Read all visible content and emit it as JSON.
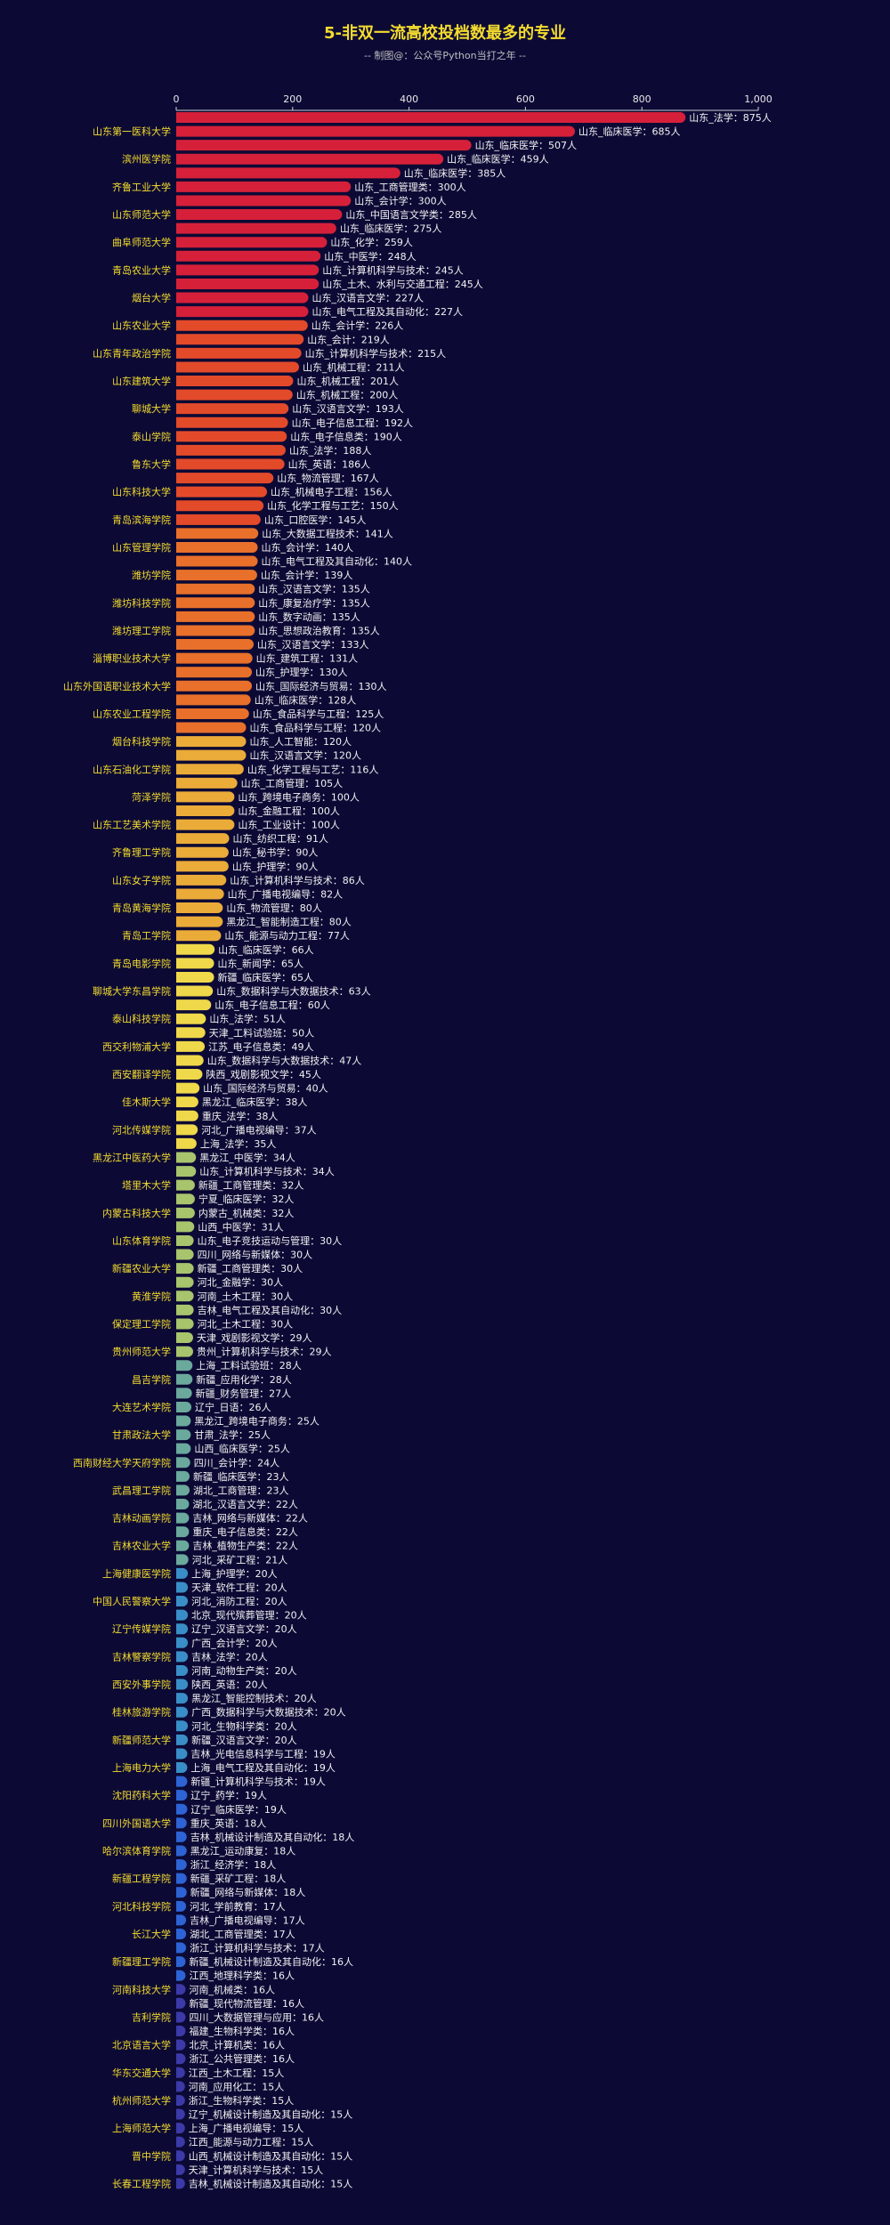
{
  "chart_data": {
    "type": "bar",
    "orientation": "horizontal",
    "title": "5-非双一流高校投档数最多的专业",
    "subtitle": "-- 制图@：公众号Python当打之年 --",
    "xlim": [
      0,
      1000
    ],
    "x_ticks": [
      0,
      200,
      400,
      600,
      800,
      1000
    ],
    "x_tick_labels": [
      "0",
      "200",
      "400",
      "600",
      "800",
      "1,000"
    ],
    "grid": false,
    "unit_suffix": "人",
    "palette": [
      "#d6203a",
      "#e34a2a",
      "#e8702a",
      "#ebab38",
      "#efd84a",
      "#a8c46c",
      "#6aa99c",
      "#3a8ec8",
      "#2d63d4",
      "#3c3aa8"
    ],
    "bars": [
      {
        "school": "",
        "label": "山东_法学",
        "value": 875
      },
      {
        "school": "山东第一医科大学",
        "label": "山东_临床医学",
        "value": 685
      },
      {
        "school": "",
        "label": "山东_临床医学",
        "value": 507
      },
      {
        "school": "滨州医学院",
        "label": "山东_临床医学",
        "value": 459
      },
      {
        "school": "",
        "label": "山东_临床医学",
        "value": 385
      },
      {
        "school": "齐鲁工业大学",
        "label": "山东_工商管理类",
        "value": 300
      },
      {
        "school": "",
        "label": "山东_会计学",
        "value": 300
      },
      {
        "school": "山东师范大学",
        "label": "山东_中国语言文学类",
        "value": 285
      },
      {
        "school": "",
        "label": "山东_临床医学",
        "value": 275
      },
      {
        "school": "曲阜师范大学",
        "label": "山东_化学",
        "value": 259
      },
      {
        "school": "",
        "label": "山东_中医学",
        "value": 248
      },
      {
        "school": "青岛农业大学",
        "label": "山东_计算机科学与技术",
        "value": 245
      },
      {
        "school": "",
        "label": "山东_土木、水利与交通工程",
        "value": 245
      },
      {
        "school": "烟台大学",
        "label": "山东_汉语言文学",
        "value": 227
      },
      {
        "school": "",
        "label": "山东_电气工程及其自动化",
        "value": 227
      },
      {
        "school": "山东农业大学",
        "label": "山东_会计学",
        "value": 226
      },
      {
        "school": "",
        "label": "山东_会计",
        "value": 219
      },
      {
        "school": "山东青年政治学院",
        "label": "山东_计算机科学与技术",
        "value": 215
      },
      {
        "school": "",
        "label": "山东_机械工程",
        "value": 211
      },
      {
        "school": "山东建筑大学",
        "label": "山东_机械工程",
        "value": 201
      },
      {
        "school": "",
        "label": "山东_机械工程",
        "value": 200
      },
      {
        "school": "聊城大学",
        "label": "山东_汉语言文学",
        "value": 193
      },
      {
        "school": "",
        "label": "山东_电子信息工程",
        "value": 192
      },
      {
        "school": "泰山学院",
        "label": "山东_电子信息类",
        "value": 190
      },
      {
        "school": "",
        "label": "山东_法学",
        "value": 188
      },
      {
        "school": "鲁东大学",
        "label": "山东_英语",
        "value": 186
      },
      {
        "school": "",
        "label": "山东_物流管理",
        "value": 167
      },
      {
        "school": "山东科技大学",
        "label": "山东_机械电子工程",
        "value": 156
      },
      {
        "school": "",
        "label": "山东_化学工程与工艺",
        "value": 150
      },
      {
        "school": "青岛滨海学院",
        "label": "山东_口腔医学",
        "value": 145
      },
      {
        "school": "",
        "label": "山东_大数据工程技术",
        "value": 141
      },
      {
        "school": "山东管理学院",
        "label": "山东_会计学",
        "value": 140
      },
      {
        "school": "",
        "label": "山东_电气工程及其自动化",
        "value": 140
      },
      {
        "school": "潍坊学院",
        "label": "山东_会计学",
        "value": 139
      },
      {
        "school": "",
        "label": "山东_汉语言文学",
        "value": 135
      },
      {
        "school": "潍坊科技学院",
        "label": "山东_康复治疗学",
        "value": 135
      },
      {
        "school": "",
        "label": "山东_数字动画",
        "value": 135
      },
      {
        "school": "潍坊理工学院",
        "label": "山东_思想政治教育",
        "value": 135
      },
      {
        "school": "",
        "label": "山东_汉语言文学",
        "value": 133
      },
      {
        "school": "淄博职业技术大学",
        "label": "山东_建筑工程",
        "value": 131
      },
      {
        "school": "",
        "label": "山东_护理学",
        "value": 130
      },
      {
        "school": "山东外国语职业技术大学",
        "label": "山东_国际经济与贸易",
        "value": 130
      },
      {
        "school": "",
        "label": "山东_临床医学",
        "value": 128
      },
      {
        "school": "山东农业工程学院",
        "label": "山东_食品科学与工程",
        "value": 125
      },
      {
        "school": "",
        "label": "山东_食品科学与工程",
        "value": 120
      },
      {
        "school": "烟台科技学院",
        "label": "山东_人工智能",
        "value": 120
      },
      {
        "school": "",
        "label": "山东_汉语言文学",
        "value": 120
      },
      {
        "school": "山东石油化工学院",
        "label": "山东_化学工程与工艺",
        "value": 116
      },
      {
        "school": "",
        "label": "山东_工商管理",
        "value": 105
      },
      {
        "school": "菏泽学院",
        "label": "山东_跨境电子商务",
        "value": 100
      },
      {
        "school": "",
        "label": "山东_金融工程",
        "value": 100
      },
      {
        "school": "山东工艺美术学院",
        "label": "山东_工业设计",
        "value": 100
      },
      {
        "school": "",
        "label": "山东_纺织工程",
        "value": 91
      },
      {
        "school": "齐鲁理工学院",
        "label": "山东_秘书学",
        "value": 90
      },
      {
        "school": "",
        "label": "山东_护理学",
        "value": 90
      },
      {
        "school": "山东女子学院",
        "label": "山东_计算机科学与技术",
        "value": 86
      },
      {
        "school": "",
        "label": "山东_广播电视编导",
        "value": 82
      },
      {
        "school": "青岛黄海学院",
        "label": "山东_物流管理",
        "value": 80
      },
      {
        "school": "",
        "label": "黑龙江_智能制造工程",
        "value": 80
      },
      {
        "school": "青岛工学院",
        "label": "山东_能源与动力工程",
        "value": 77
      },
      {
        "school": "",
        "label": "山东_临床医学",
        "value": 66
      },
      {
        "school": "青岛电影学院",
        "label": "山东_新闻学",
        "value": 65
      },
      {
        "school": "",
        "label": "新疆_临床医学",
        "value": 65
      },
      {
        "school": "聊城大学东昌学院",
        "label": "山东_数据科学与大数据技术",
        "value": 63
      },
      {
        "school": "",
        "label": "山东_电子信息工程",
        "value": 60
      },
      {
        "school": "泰山科技学院",
        "label": "山东_法学",
        "value": 51
      },
      {
        "school": "",
        "label": "天津_工料试验班",
        "value": 50
      },
      {
        "school": "西交利物浦大学",
        "label": "江苏_电子信息类",
        "value": 49
      },
      {
        "school": "",
        "label": "山东_数据科学与大数据技术",
        "value": 47
      },
      {
        "school": "西安翻译学院",
        "label": "陕西_戏剧影视文学",
        "value": 45
      },
      {
        "school": "",
        "label": "山东_国际经济与贸易",
        "value": 40
      },
      {
        "school": "佳木斯大学",
        "label": "黑龙江_临床医学",
        "value": 38
      },
      {
        "school": "",
        "label": "重庆_法学",
        "value": 38
      },
      {
        "school": "河北传媒学院",
        "label": "河北_广播电视编导",
        "value": 37
      },
      {
        "school": "",
        "label": "上海_法学",
        "value": 35
      },
      {
        "school": "黑龙江中医药大学",
        "label": "黑龙江_中医学",
        "value": 34
      },
      {
        "school": "",
        "label": "山东_计算机科学与技术",
        "value": 34
      },
      {
        "school": "塔里木大学",
        "label": "新疆_工商管理类",
        "value": 32
      },
      {
        "school": "",
        "label": "宁夏_临床医学",
        "value": 32
      },
      {
        "school": "内蒙古科技大学",
        "label": "内蒙古_机械类",
        "value": 32
      },
      {
        "school": "",
        "label": "山西_中医学",
        "value": 31
      },
      {
        "school": "山东体育学院",
        "label": "山东_电子竞技运动与管理",
        "value": 30
      },
      {
        "school": "",
        "label": "四川_网络与新媒体",
        "value": 30
      },
      {
        "school": "新疆农业大学",
        "label": "新疆_工商管理类",
        "value": 30
      },
      {
        "school": "",
        "label": "河北_金融学",
        "value": 30
      },
      {
        "school": "黄淮学院",
        "label": "河南_土木工程",
        "value": 30
      },
      {
        "school": "",
        "label": "吉林_电气工程及其自动化",
        "value": 30
      },
      {
        "school": "保定理工学院",
        "label": "河北_土木工程",
        "value": 30
      },
      {
        "school": "",
        "label": "天津_戏剧影视文学",
        "value": 29
      },
      {
        "school": "贵州师范大学",
        "label": "贵州_计算机科学与技术",
        "value": 29
      },
      {
        "school": "",
        "label": "上海_工料试验班",
        "value": 28
      },
      {
        "school": "昌吉学院",
        "label": "新疆_应用化学",
        "value": 28
      },
      {
        "school": "",
        "label": "新疆_财务管理",
        "value": 27
      },
      {
        "school": "大连艺术学院",
        "label": "辽宁_日语",
        "value": 26
      },
      {
        "school": "",
        "label": "黑龙江_跨境电子商务",
        "value": 25
      },
      {
        "school": "甘肃政法大学",
        "label": "甘肃_法学",
        "value": 25
      },
      {
        "school": "",
        "label": "山西_临床医学",
        "value": 25
      },
      {
        "school": "西南财经大学天府学院",
        "label": "四川_会计学",
        "value": 24
      },
      {
        "school": "",
        "label": "新疆_临床医学",
        "value": 23
      },
      {
        "school": "武昌理工学院",
        "label": "湖北_工商管理",
        "value": 23
      },
      {
        "school": "",
        "label": "湖北_汉语言文学",
        "value": 22
      },
      {
        "school": "吉林动画学院",
        "label": "吉林_网络与新媒体",
        "value": 22
      },
      {
        "school": "",
        "label": "重庆_电子信息类",
        "value": 22
      },
      {
        "school": "吉林农业大学",
        "label": "吉林_植物生产类",
        "value": 22
      },
      {
        "school": "",
        "label": "河北_采矿工程",
        "value": 21
      },
      {
        "school": "上海健康医学院",
        "label": "上海_护理学",
        "value": 20
      },
      {
        "school": "",
        "label": "天津_软件工程",
        "value": 20
      },
      {
        "school": "中国人民警察大学",
        "label": "河北_消防工程",
        "value": 20
      },
      {
        "school": "",
        "label": "北京_现代殡葬管理",
        "value": 20
      },
      {
        "school": "辽宁传媒学院",
        "label": "辽宁_汉语言文学",
        "value": 20
      },
      {
        "school": "",
        "label": "广西_会计学",
        "value": 20
      },
      {
        "school": "吉林警察学院",
        "label": "吉林_法学",
        "value": 20
      },
      {
        "school": "",
        "label": "河南_动物生产类",
        "value": 20
      },
      {
        "school": "西安外事学院",
        "label": "陕西_英语",
        "value": 20
      },
      {
        "school": "",
        "label": "黑龙江_智能控制技术",
        "value": 20
      },
      {
        "school": "桂林旅游学院",
        "label": "广西_数据科学与大数据技术",
        "value": 20
      },
      {
        "school": "",
        "label": "河北_生物科学类",
        "value": 20
      },
      {
        "school": "新疆师范大学",
        "label": "新疆_汉语言文学",
        "value": 20
      },
      {
        "school": "",
        "label": "吉林_光电信息科学与工程",
        "value": 19
      },
      {
        "school": "上海电力大学",
        "label": "上海_电气工程及其自动化",
        "value": 19
      },
      {
        "school": "",
        "label": "新疆_计算机科学与技术",
        "value": 19
      },
      {
        "school": "沈阳药科大学",
        "label": "辽宁_药学",
        "value": 19
      },
      {
        "school": "",
        "label": "辽宁_临床医学",
        "value": 19
      },
      {
        "school": "四川外国语大学",
        "label": "重庆_英语",
        "value": 18
      },
      {
        "school": "",
        "label": "吉林_机械设计制造及其自动化",
        "value": 18
      },
      {
        "school": "哈尔滨体育学院",
        "label": "黑龙江_运动康复",
        "value": 18
      },
      {
        "school": "",
        "label": "浙江_经济学",
        "value": 18
      },
      {
        "school": "新疆工程学院",
        "label": "新疆_采矿工程",
        "value": 18
      },
      {
        "school": "",
        "label": "新疆_网络与新媒体",
        "value": 18
      },
      {
        "school": "河北科技学院",
        "label": "河北_学前教育",
        "value": 17
      },
      {
        "school": "",
        "label": "吉林_广播电视编导",
        "value": 17
      },
      {
        "school": "长江大学",
        "label": "湖北_工商管理类",
        "value": 17
      },
      {
        "school": "",
        "label": "浙江_计算机科学与技术",
        "value": 17
      },
      {
        "school": "新疆理工学院",
        "label": "新疆_机械设计制造及其自动化",
        "value": 16
      },
      {
        "school": "",
        "label": "江西_地理科学类",
        "value": 16
      },
      {
        "school": "河南科技大学",
        "label": "河南_机械类",
        "value": 16
      },
      {
        "school": "",
        "label": "新疆_现代物流管理",
        "value": 16
      },
      {
        "school": "吉利学院",
        "label": "四川_大数据管理与应用",
        "value": 16
      },
      {
        "school": "",
        "label": "福建_生物科学类",
        "value": 16
      },
      {
        "school": "北京语言大学",
        "label": "北京_计算机类",
        "value": 16
      },
      {
        "school": "",
        "label": "浙江_公共管理类",
        "value": 16
      },
      {
        "school": "华东交通大学",
        "label": "江西_土木工程",
        "value": 15
      },
      {
        "school": "",
        "label": "河南_应用化工",
        "value": 15
      },
      {
        "school": "杭州师范大学",
        "label": "浙江_生物科学类",
        "value": 15
      },
      {
        "school": "",
        "label": "辽宁_机械设计制造及其自动化",
        "value": 15
      },
      {
        "school": "上海师范大学",
        "label": "上海_广播电视编导",
        "value": 15
      },
      {
        "school": "",
        "label": "江西_能源与动力工程",
        "value": 15
      },
      {
        "school": "晋中学院",
        "label": "山西_机械设计制造及其自动化",
        "value": 15
      },
      {
        "school": "",
        "label": "天津_计算机科学与技术",
        "value": 15
      },
      {
        "school": "长春工程学院",
        "label": "吉林_机械设计制造及其自动化",
        "value": 15
      }
    ]
  }
}
